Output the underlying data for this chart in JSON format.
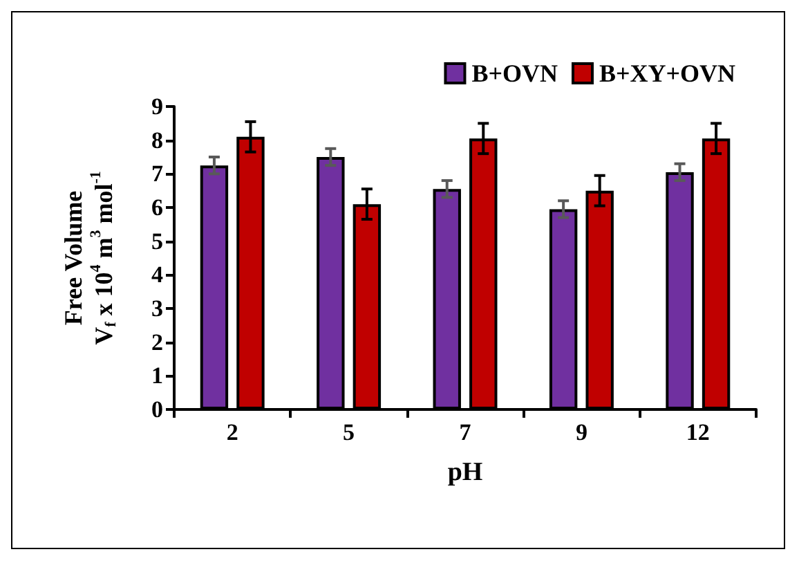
{
  "chart_data": {
    "type": "bar",
    "xlabel": "pH",
    "ylabel": "Free Volume\nV$_{f}$ x 10$^{4}$ m$^{3}$ mol$^{-1}$",
    "categories": [
      "2",
      "5",
      "7",
      "9",
      "12"
    ],
    "series": [
      {
        "name": "B+OVN",
        "color": "#7030a0",
        "values": [
          7.25,
          7.5,
          6.55,
          5.95,
          7.05
        ],
        "errors": [
          0.25,
          0.25,
          0.25,
          0.25,
          0.25
        ]
      },
      {
        "name": "B+XY+OVN",
        "color": "#c00000",
        "values": [
          8.1,
          6.1,
          8.05,
          6.5,
          8.05
        ],
        "errors": [
          0.45,
          0.45,
          0.45,
          0.45,
          0.45
        ]
      }
    ],
    "ylim": [
      0,
      9
    ],
    "yticks": [
      0,
      1,
      2,
      3,
      4,
      5,
      6,
      7,
      8,
      9
    ],
    "grid": false,
    "legend": "top right"
  }
}
